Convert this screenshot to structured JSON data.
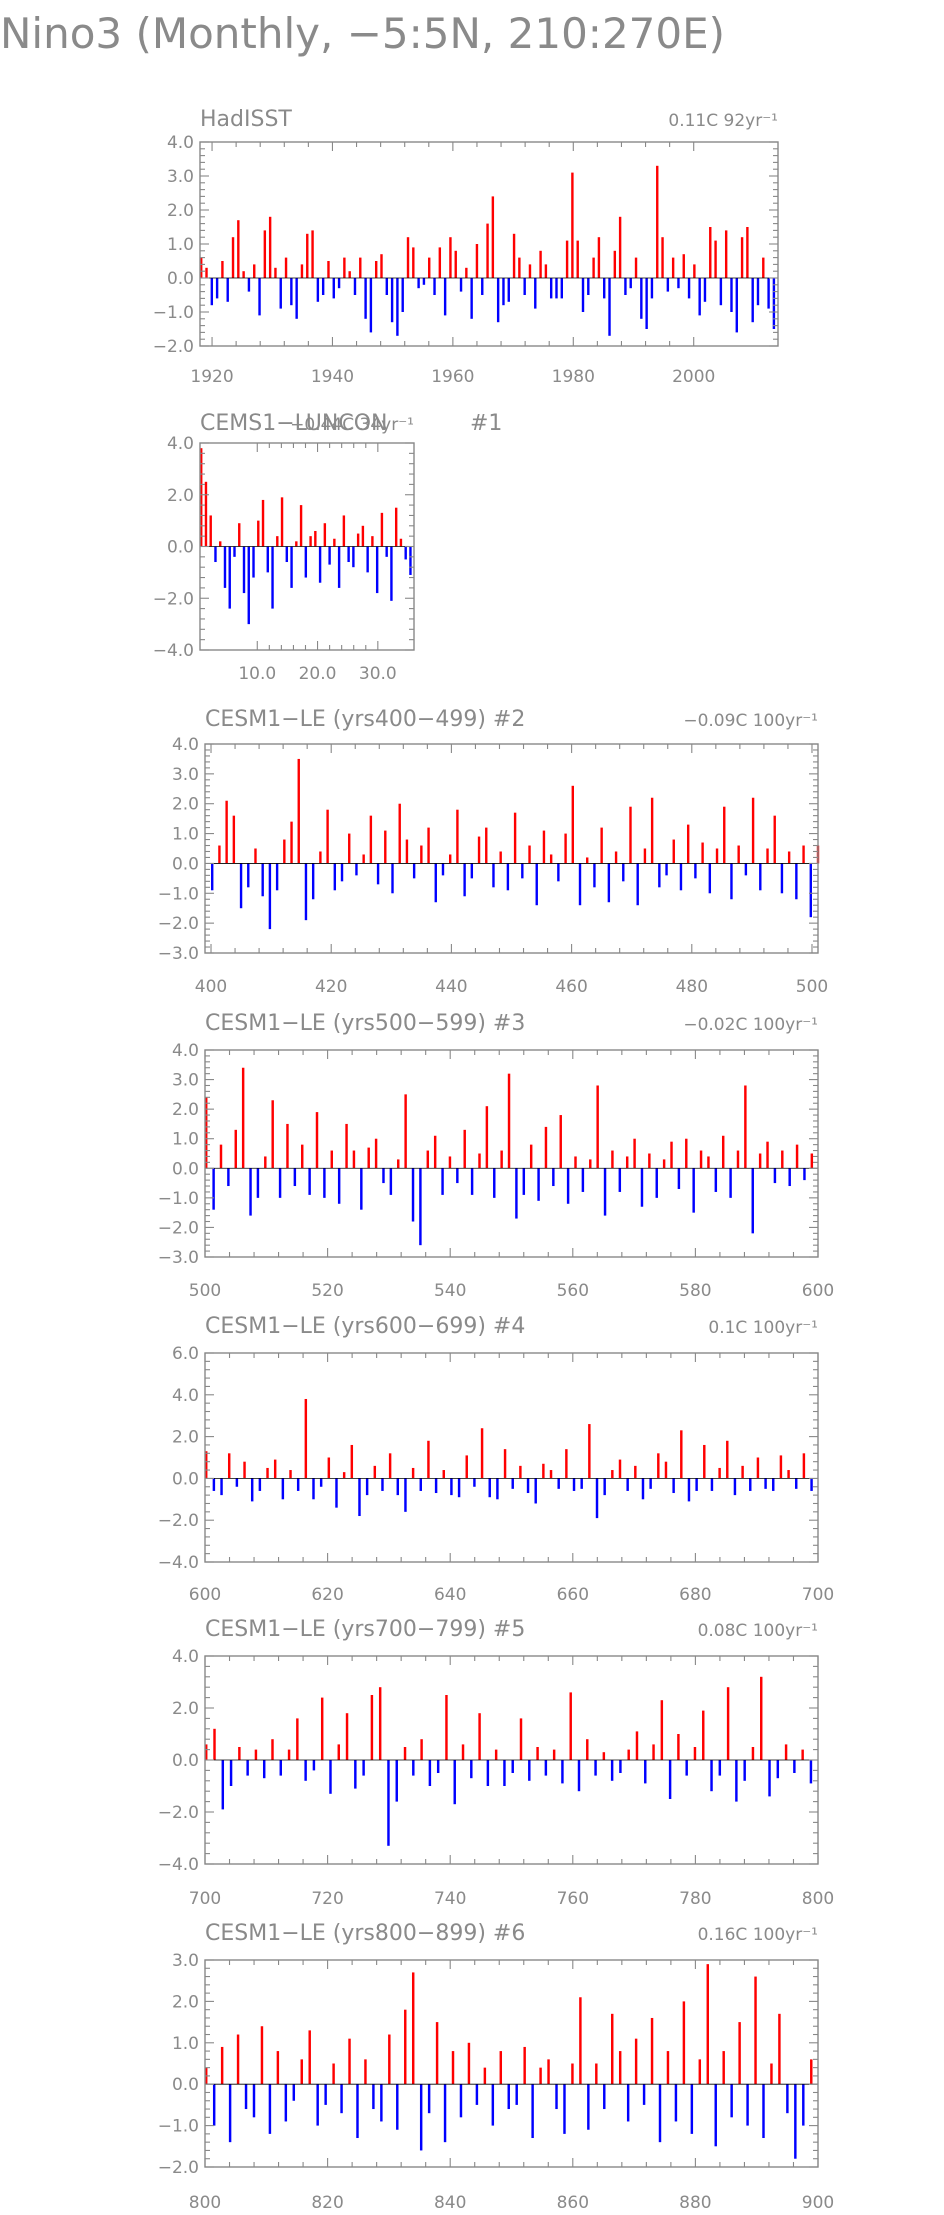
{
  "page": {
    "title": "Nino3 (Monthly, −5:5N, 210:270E)"
  },
  "colors": {
    "positive": "#ff0000",
    "negative": "#0000ff",
    "axis": "#888888"
  },
  "chart_data": [
    {
      "type": "bar",
      "title": "HadISST",
      "trend": "0.11C 92yr⁻¹",
      "xlim": [
        1918,
        2014
      ],
      "ylim": [
        -2.0,
        4.0
      ],
      "xticks": [
        1920,
        1940,
        1960,
        1980,
        2000
      ],
      "xticklabels": [
        "1920",
        "1940",
        "1960",
        "1980",
        "2000"
      ],
      "yticks": [
        4.0,
        3.0,
        2.0,
        1.0,
        0.0,
        -1.0,
        -2.0
      ],
      "yticklabels": [
        "4.0",
        "3.0",
        "2.0",
        "1.0",
        "0.0",
        "−1.0",
        "−2.0"
      ],
      "series": [
        {
          "start": 1918,
          "step": 0.25,
          "values": [
            0.6,
            0.3,
            -0.8,
            -0.6,
            0.5,
            -0.7,
            1.2,
            1.7,
            0.2,
            -0.4,
            0.4,
            -1.1,
            1.4,
            1.8,
            0.3,
            -0.9,
            0.6,
            -0.8,
            -1.2,
            0.4,
            1.3,
            1.4,
            -0.7,
            -0.5,
            0.5,
            -0.6,
            -0.3,
            0.6,
            0.2,
            -0.5,
            0.6,
            -1.2,
            -1.6,
            0.5,
            0.7,
            -0.5,
            -1.3,
            -1.7,
            -1.0,
            1.2,
            0.9,
            -0.3,
            -0.2,
            0.6,
            -0.5,
            0.9,
            -1.1,
            1.2,
            0.8,
            -0.4,
            0.3,
            -1.2,
            1.0,
            -0.5,
            1.6,
            2.4,
            -1.3,
            -0.8,
            -0.7,
            1.3,
            0.6,
            -0.5,
            0.4,
            -0.9,
            0.8,
            0.4,
            -0.6,
            -0.6,
            -0.6,
            1.1,
            3.1,
            1.1,
            -1.0,
            -0.5,
            0.6,
            1.2,
            -0.6,
            -1.7,
            0.8,
            1.8,
            -0.5,
            -0.3,
            0.6,
            -1.2,
            -1.5,
            -0.6,
            3.3,
            1.2,
            -0.4,
            0.6,
            -0.3,
            0.7,
            -0.6,
            0.4,
            -1.1,
            -0.7,
            1.5,
            1.1,
            -0.8,
            1.4,
            -1.0,
            -1.6,
            1.2,
            1.5,
            -1.3,
            -0.8,
            0.6,
            -0.9,
            -1.5
          ]
        }
      ]
    },
    {
      "type": "bar",
      "title": "CEMS1−LUNCON",
      "trend": "−0.44C 34yr⁻¹",
      "extra_label": "#1",
      "xlim": [
        0.5,
        36.0
      ],
      "ylim": [
        -4.0,
        4.0
      ],
      "xticks": [
        10,
        20,
        30
      ],
      "xticklabels": [
        "10.0",
        "20.0",
        "30.0"
      ],
      "yticks": [
        4,
        2,
        0,
        -2,
        -4
      ],
      "yticklabels": [
        "4.0",
        "2.0",
        "0.0",
        "−2.0",
        "−4.0"
      ],
      "series": [
        {
          "start": 0.5,
          "step": 0.25,
          "values": [
            3.8,
            2.5,
            1.2,
            -0.6,
            0.2,
            -1.6,
            -2.4,
            -0.4,
            0.9,
            -1.8,
            -3.0,
            -1.2,
            1.0,
            1.8,
            -1.0,
            -2.4,
            0.4,
            1.9,
            -0.6,
            -1.6,
            0.2,
            1.6,
            -1.2,
            0.4,
            0.6,
            -1.4,
            0.9,
            -0.7,
            0.3,
            -1.6,
            1.2,
            -0.6,
            -0.8,
            0.5,
            0.8,
            -1.0,
            0.4,
            -1.8,
            1.3,
            -0.4,
            -2.1,
            1.5,
            0.3,
            -0.5,
            -1.1
          ]
        }
      ]
    },
    {
      "type": "bar",
      "title": "CESM1−LE (yrs400−499) #2",
      "trend": "−0.09C 100yr⁻¹",
      "xlim": [
        399,
        501
      ],
      "ylim": [
        -3.0,
        4.0
      ],
      "xticks": [
        400,
        420,
        440,
        460,
        480,
        500
      ],
      "xticklabels": [
        "400",
        "420",
        "440",
        "460",
        "480",
        "500"
      ],
      "yticks": [
        4,
        3,
        2,
        1,
        0,
        -1,
        -2,
        -3
      ],
      "yticklabels": [
        "4.0",
        "3.0",
        "2.0",
        "1.0",
        "0.0",
        "−1.0",
        "−2.0",
        "−3.0"
      ],
      "series": [
        {
          "start": 400,
          "step": 0.25,
          "values": [
            -0.9,
            0.6,
            2.1,
            1.6,
            -1.5,
            -0.8,
            0.5,
            -1.1,
            -2.2,
            -0.9,
            0.8,
            1.4,
            3.5,
            -1.9,
            -1.2,
            0.4,
            1.8,
            -0.9,
            -0.6,
            1.0,
            -0.4,
            0.3,
            1.6,
            -0.7,
            1.1,
            -1.0,
            2.0,
            0.8,
            -0.5,
            0.6,
            1.2,
            -1.3,
            -0.4,
            0.3,
            1.8,
            -1.1,
            -0.5,
            0.9,
            1.2,
            -0.8,
            0.4,
            -0.9,
            1.7,
            -0.5,
            0.6,
            -1.4,
            1.1,
            0.3,
            -0.6,
            1.0,
            2.6,
            -1.4,
            0.2,
            -0.8,
            1.2,
            -1.3,
            0.4,
            -0.6,
            1.9,
            -1.4,
            0.5,
            2.2,
            -0.8,
            -0.4,
            0.8,
            -0.9,
            1.3,
            -0.5,
            0.7,
            -1.0,
            0.5,
            1.9,
            -1.2,
            0.6,
            -0.4,
            2.2,
            -0.9,
            0.5,
            1.6,
            -1.0,
            0.4,
            -1.2,
            0.6,
            -1.8,
            0.6
          ]
        }
      ]
    },
    {
      "type": "bar",
      "title": "CESM1−LE (yrs500−599) #3",
      "trend": "−0.02C 100yr⁻¹",
      "xlim": [
        500,
        600
      ],
      "ylim": [
        -3.0,
        4.0
      ],
      "xticks": [
        500,
        520,
        540,
        560,
        580,
        600
      ],
      "xticklabels": [
        "500",
        "520",
        "540",
        "560",
        "580",
        "600"
      ],
      "yticks": [
        4,
        3,
        2,
        1,
        0,
        -1,
        -2,
        -3
      ],
      "yticklabels": [
        "4.0",
        "3.0",
        "2.0",
        "1.0",
        "0.0",
        "−1.0",
        "−2.0",
        "−3.0"
      ],
      "series": [
        {
          "start": 500,
          "step": 0.25,
          "values": [
            2.4,
            -1.4,
            0.8,
            -0.6,
            1.3,
            3.4,
            -1.6,
            -1.0,
            0.4,
            2.3,
            -1.0,
            1.5,
            -0.6,
            0.8,
            -0.9,
            1.9,
            -1.0,
            0.6,
            -1.2,
            1.5,
            0.6,
            -1.4,
            0.7,
            1.0,
            -0.5,
            -0.9,
            0.3,
            2.5,
            -1.8,
            -2.6,
            0.6,
            1.1,
            -0.9,
            0.4,
            -0.5,
            1.3,
            -0.9,
            0.5,
            2.1,
            -1.0,
            0.6,
            3.2,
            -1.7,
            -0.9,
            0.8,
            -1.1,
            1.4,
            -0.6,
            1.8,
            -1.2,
            0.4,
            -0.8,
            0.3,
            2.8,
            -1.6,
            0.6,
            -0.8,
            0.4,
            1.0,
            -1.3,
            0.5,
            -1.0,
            0.3,
            0.9,
            -0.7,
            1.0,
            -1.5,
            0.6,
            0.4,
            -0.8,
            1.1,
            -1.0,
            0.6,
            2.8,
            -2.2,
            0.5,
            0.9,
            -0.5,
            0.6,
            -0.6,
            0.8,
            -0.4,
            0.5
          ]
        }
      ]
    },
    {
      "type": "bar",
      "title": "CESM1−LE (yrs600−699) #4",
      "trend": "0.1C 100yr⁻¹",
      "xlim": [
        600,
        700
      ],
      "ylim": [
        -4.0,
        6.0
      ],
      "xticks": [
        600,
        620,
        640,
        660,
        680,
        700
      ],
      "xticklabels": [
        "600",
        "620",
        "640",
        "660",
        "680",
        "700"
      ],
      "yticks": [
        6,
        4,
        2,
        0,
        -2,
        -4
      ],
      "yticklabels": [
        "6.0",
        "4.0",
        "2.0",
        "0.0",
        "−2.0",
        "−4.0"
      ],
      "series": [
        {
          "start": 600,
          "step": 0.25,
          "values": [
            1.3,
            -0.6,
            -0.8,
            1.2,
            -0.4,
            0.8,
            -1.1,
            -0.6,
            0.5,
            0.9,
            -1.0,
            0.4,
            -0.6,
            3.8,
            -1.0,
            -0.4,
            1.0,
            -1.4,
            0.3,
            1.6,
            -1.8,
            -0.8,
            0.6,
            -0.6,
            1.2,
            -0.8,
            -1.6,
            0.5,
            -0.6,
            1.8,
            -0.7,
            0.4,
            -0.8,
            -0.9,
            1.1,
            -0.4,
            2.4,
            -0.9,
            -1.0,
            1.4,
            -0.5,
            0.6,
            -0.7,
            -1.2,
            0.7,
            0.4,
            -0.5,
            1.4,
            -0.6,
            -0.5,
            2.6,
            -1.9,
            -0.8,
            0.4,
            0.9,
            -0.6,
            0.6,
            -1.0,
            -0.5,
            1.2,
            0.8,
            -0.7,
            2.3,
            -1.1,
            -0.6,
            1.6,
            -0.6,
            0.5,
            1.8,
            -0.8,
            0.6,
            -0.6,
            1.0,
            -0.5,
            -0.6,
            1.1,
            0.4,
            -0.5,
            1.2,
            -0.6
          ]
        }
      ]
    },
    {
      "type": "bar",
      "title": "CESM1−LE (yrs700−799) #5",
      "trend": "0.08C 100yr⁻¹",
      "xlim": [
        700,
        800
      ],
      "ylim": [
        -4.0,
        4.0
      ],
      "xticks": [
        700,
        720,
        740,
        760,
        780,
        800
      ],
      "xticklabels": [
        "700",
        "720",
        "740",
        "760",
        "780",
        "800"
      ],
      "yticks": [
        4,
        2,
        0,
        -2,
        -4
      ],
      "yticklabels": [
        "4.0",
        "2.0",
        "0.0",
        "−2.0",
        "−4.0"
      ],
      "series": [
        {
          "start": 700,
          "step": 0.25,
          "values": [
            0.6,
            1.2,
            -1.9,
            -1.0,
            0.5,
            -0.6,
            0.4,
            -0.7,
            0.8,
            -0.6,
            0.4,
            1.6,
            -0.8,
            -0.4,
            2.4,
            -1.3,
            0.6,
            1.8,
            -1.1,
            -0.6,
            2.5,
            2.8,
            -3.3,
            -1.6,
            0.5,
            -0.6,
            0.8,
            -1.0,
            -0.5,
            2.5,
            -1.7,
            0.6,
            -0.7,
            1.8,
            -1.0,
            0.4,
            -1.0,
            -0.5,
            1.6,
            -0.8,
            0.5,
            -0.6,
            0.4,
            -0.9,
            2.6,
            -1.2,
            0.8,
            -0.6,
            0.3,
            -0.8,
            -0.5,
            0.4,
            1.1,
            -0.9,
            0.6,
            2.3,
            -1.5,
            1.0,
            -0.6,
            0.5,
            1.9,
            -1.2,
            -0.6,
            2.8,
            -1.6,
            -0.8,
            0.5,
            3.2,
            -1.4,
            -0.7,
            0.6,
            -0.5,
            0.4,
            -0.9
          ]
        }
      ]
    },
    {
      "type": "bar",
      "title": "CESM1−LE (yrs800−899) #6",
      "trend": "0.16C 100yr⁻¹",
      "xlim": [
        800,
        900
      ],
      "ylim": [
        -2.0,
        3.0
      ],
      "xticks": [
        800,
        820,
        840,
        860,
        880,
        900
      ],
      "xticklabels": [
        "800",
        "820",
        "840",
        "860",
        "880",
        "900"
      ],
      "yticks": [
        3,
        2,
        1,
        0,
        -1,
        -2
      ],
      "yticklabels": [
        "3.0",
        "2.0",
        "1.0",
        "0.0",
        "−1.0",
        "−2.0"
      ],
      "series": [
        {
          "start": 800,
          "step": 0.25,
          "values": [
            0.4,
            -1.0,
            0.9,
            -1.4,
            1.2,
            -0.6,
            -0.8,
            1.4,
            -1.2,
            0.8,
            -0.9,
            -0.4,
            0.6,
            1.3,
            -1.0,
            -0.5,
            0.5,
            -0.7,
            1.1,
            -1.3,
            0.6,
            -0.6,
            -0.9,
            1.2,
            -1.1,
            1.8,
            2.7,
            -1.6,
            -0.7,
            1.5,
            -1.4,
            0.8,
            -0.8,
            1.0,
            -0.5,
            0.4,
            -1.0,
            0.8,
            -0.6,
            -0.5,
            0.9,
            -1.3,
            0.4,
            0.6,
            -0.6,
            -1.2,
            0.5,
            2.1,
            -1.1,
            0.5,
            -0.6,
            1.7,
            0.8,
            -0.9,
            1.1,
            -0.5,
            1.6,
            -1.4,
            0.8,
            -0.9,
            2.0,
            -1.2,
            0.6,
            2.9,
            -1.5,
            0.8,
            -0.8,
            1.5,
            -1.0,
            2.6,
            -1.3,
            0.5,
            1.7,
            -0.7,
            -1.8,
            -1.0,
            0.6
          ]
        }
      ]
    }
  ]
}
